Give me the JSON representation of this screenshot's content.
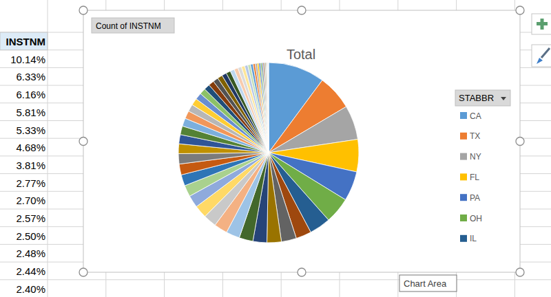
{
  "chart_data": {
    "type": "pie",
    "title": "Total",
    "legend": "right",
    "categories": [
      "CA",
      "TX",
      "NY",
      "FL",
      "PA",
      "OH",
      "IL",
      null,
      null,
      null,
      null,
      null,
      null,
      null,
      null,
      null,
      null,
      null,
      null,
      null,
      null,
      null,
      null,
      null,
      null,
      null,
      null,
      null,
      null,
      null,
      null,
      null,
      null,
      null,
      null,
      null,
      null,
      null,
      null,
      null,
      null,
      null,
      null,
      null,
      null,
      null,
      null,
      null,
      null,
      null,
      null,
      null,
      null,
      null,
      null,
      null,
      null
    ],
    "values": [
      10.14,
      6.33,
      6.16,
      5.81,
      5.33,
      4.68,
      3.81,
      2.77,
      2.7,
      2.57,
      2.5,
      2.48,
      2.44,
      2.4,
      2.35,
      2.3,
      2.2,
      2.05,
      2.0,
      1.95,
      1.85,
      1.75,
      1.65,
      1.55,
      1.45,
      1.4,
      1.3,
      1.25,
      1.2,
      1.1,
      1.05,
      1.0,
      0.95,
      0.9,
      0.85,
      0.8,
      0.75,
      0.7,
      0.65,
      0.6,
      0.55,
      0.5,
      0.45,
      0.4,
      0.35,
      0.3,
      0.28,
      0.25,
      0.22,
      0.2,
      0.18,
      0.15,
      0.12,
      0.1,
      0.1,
      0.08,
      0.05
    ],
    "colors": [
      "#5B9BD5",
      "#ED7D31",
      "#A5A5A5",
      "#FFC000",
      "#4472C4",
      "#70AD47",
      "#255E91",
      "#9E480E",
      "#636363",
      "#997300",
      "#264478",
      "#43682B",
      "#9DC3E6",
      "#F4B183",
      "#C9C9C9",
      "#FFD966",
      "#8FAADC",
      "#A9D18E",
      "#2E75B6",
      "#C55A11",
      "#7B7B7B",
      "#BF9000",
      "#2F5597",
      "#548235",
      "#7CAFDD",
      "#F1975A",
      "#B7B7B7",
      "#FFCD33",
      "#698ED0",
      "#8CC168",
      "#1F4E79",
      "#843C0C",
      "#525252",
      "#7F6000",
      "#203864",
      "#385723",
      "#BDD7EE",
      "#F8CBAD",
      "#DBDBDB",
      "#FFE699",
      "#B4C7E7",
      "#C5E0B4",
      "#5B9BD5",
      "#ED7D31",
      "#A5A5A5",
      "#FFC000",
      "#4472C4",
      "#70AD47",
      "#255E91",
      "#9E480E",
      "#636363",
      "#997300",
      "#264478",
      "#43682B",
      "#9DC3E6",
      "#F4B183",
      "#C9C9C9"
    ]
  },
  "sheet": {
    "column_header": "INSTNM",
    "cells": [
      "10.14%",
      "6.33%",
      "6.16%",
      "5.81%",
      "5.33%",
      "4.68%",
      "3.81%",
      "2.77%",
      "2.70%",
      "2.57%",
      "2.50%",
      "2.48%",
      "2.44%",
      "2.40%"
    ]
  },
  "ui": {
    "field_button": "Count of INSTNM",
    "legend_field": "STABBR",
    "tooltip": "Chart Area"
  }
}
